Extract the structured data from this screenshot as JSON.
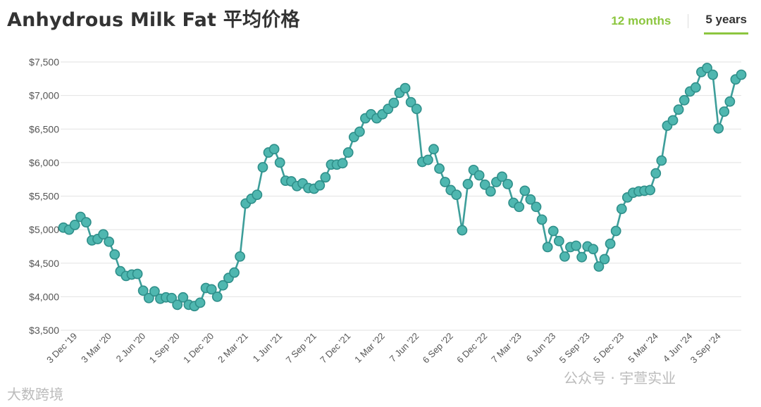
{
  "header": {
    "title": "Anhydrous Milk Fat 平均价格",
    "tabs": [
      {
        "label": "12 months",
        "active": false
      },
      {
        "label": "5 years",
        "active": true
      }
    ]
  },
  "watermarks": {
    "left": "大数跨境",
    "right": "公众号 · 宇萱实业"
  },
  "colors": {
    "line": "#3d9e9a",
    "marker_fill": "#4fb7b0",
    "marker_stroke": "#2f8f8a",
    "grid": "#e2e2e2",
    "accent": "#8cc63f"
  },
  "chart_data": {
    "type": "line",
    "title": "",
    "xlabel": "",
    "ylabel": "",
    "ylim": [
      3500,
      7500
    ],
    "yticks": [
      3500,
      4000,
      4500,
      5000,
      5500,
      6000,
      6500,
      7000,
      7500
    ],
    "ytick_labels": [
      "$3,500",
      "$4,000",
      "$4,500",
      "$5,000",
      "$5,500",
      "$6,000",
      "$6,500",
      "$7,000",
      "$7,500"
    ],
    "xtick_labels": [
      "3 Dec '19",
      "3 Mar '20",
      "2 Jun '20",
      "1 Sep '20",
      "1 Dec '20",
      "2 Mar '21",
      "1 Jun '21",
      "7 Sep '21",
      "7 Dec '21",
      "1 Mar '22",
      "7 Jun '22",
      "6 Sep '22",
      "6 Dec '22",
      "7 Mar '23",
      "6 Jun '23",
      "5 Sep '23",
      "5 Dec '23",
      "5 Mar '24",
      "4 Jun '24",
      "3 Sep '24"
    ],
    "xtick_index": [
      2,
      8,
      14,
      20,
      26,
      32,
      38,
      44,
      50,
      56,
      62,
      68,
      74,
      80,
      86,
      92,
      98,
      104,
      110,
      115
    ],
    "grid": true,
    "series": [
      {
        "values": [
          5030,
          5000,
          5070,
          5190,
          5110,
          4840,
          4860,
          4930,
          4820,
          4630,
          4380,
          4310,
          4330,
          4340,
          4090,
          3980,
          4080,
          3970,
          3990,
          3980,
          3880,
          3990,
          3880,
          3860,
          3910,
          4130,
          4110,
          4000,
          4170,
          4280,
          4360,
          4600,
          5390,
          5460,
          5520,
          5930,
          6150,
          6200,
          6000,
          5730,
          5720,
          5650,
          5690,
          5620,
          5610,
          5660,
          5780,
          5970,
          5970,
          5990,
          6150,
          6380,
          6460,
          6660,
          6720,
          6660,
          6720,
          6800,
          6890,
          7040,
          7110,
          6900,
          6800,
          6010,
          6040,
          6200,
          5910,
          5710,
          5590,
          5520,
          4990,
          5680,
          5890,
          5810,
          5670,
          5570,
          5710,
          5790,
          5680,
          5400,
          5340,
          5580,
          5450,
          5340,
          5150,
          4740,
          4980,
          4830,
          4600,
          4740,
          4760,
          4590,
          4750,
          4710,
          4450,
          4560,
          4790,
          4980,
          5310,
          5480,
          5550,
          5570,
          5580,
          5590,
          5840,
          6030,
          6550,
          6630,
          6790,
          6930,
          7060,
          7120,
          7350,
          7410,
          7310,
          6510,
          6760,
          6910,
          7240,
          7310
        ]
      }
    ]
  }
}
